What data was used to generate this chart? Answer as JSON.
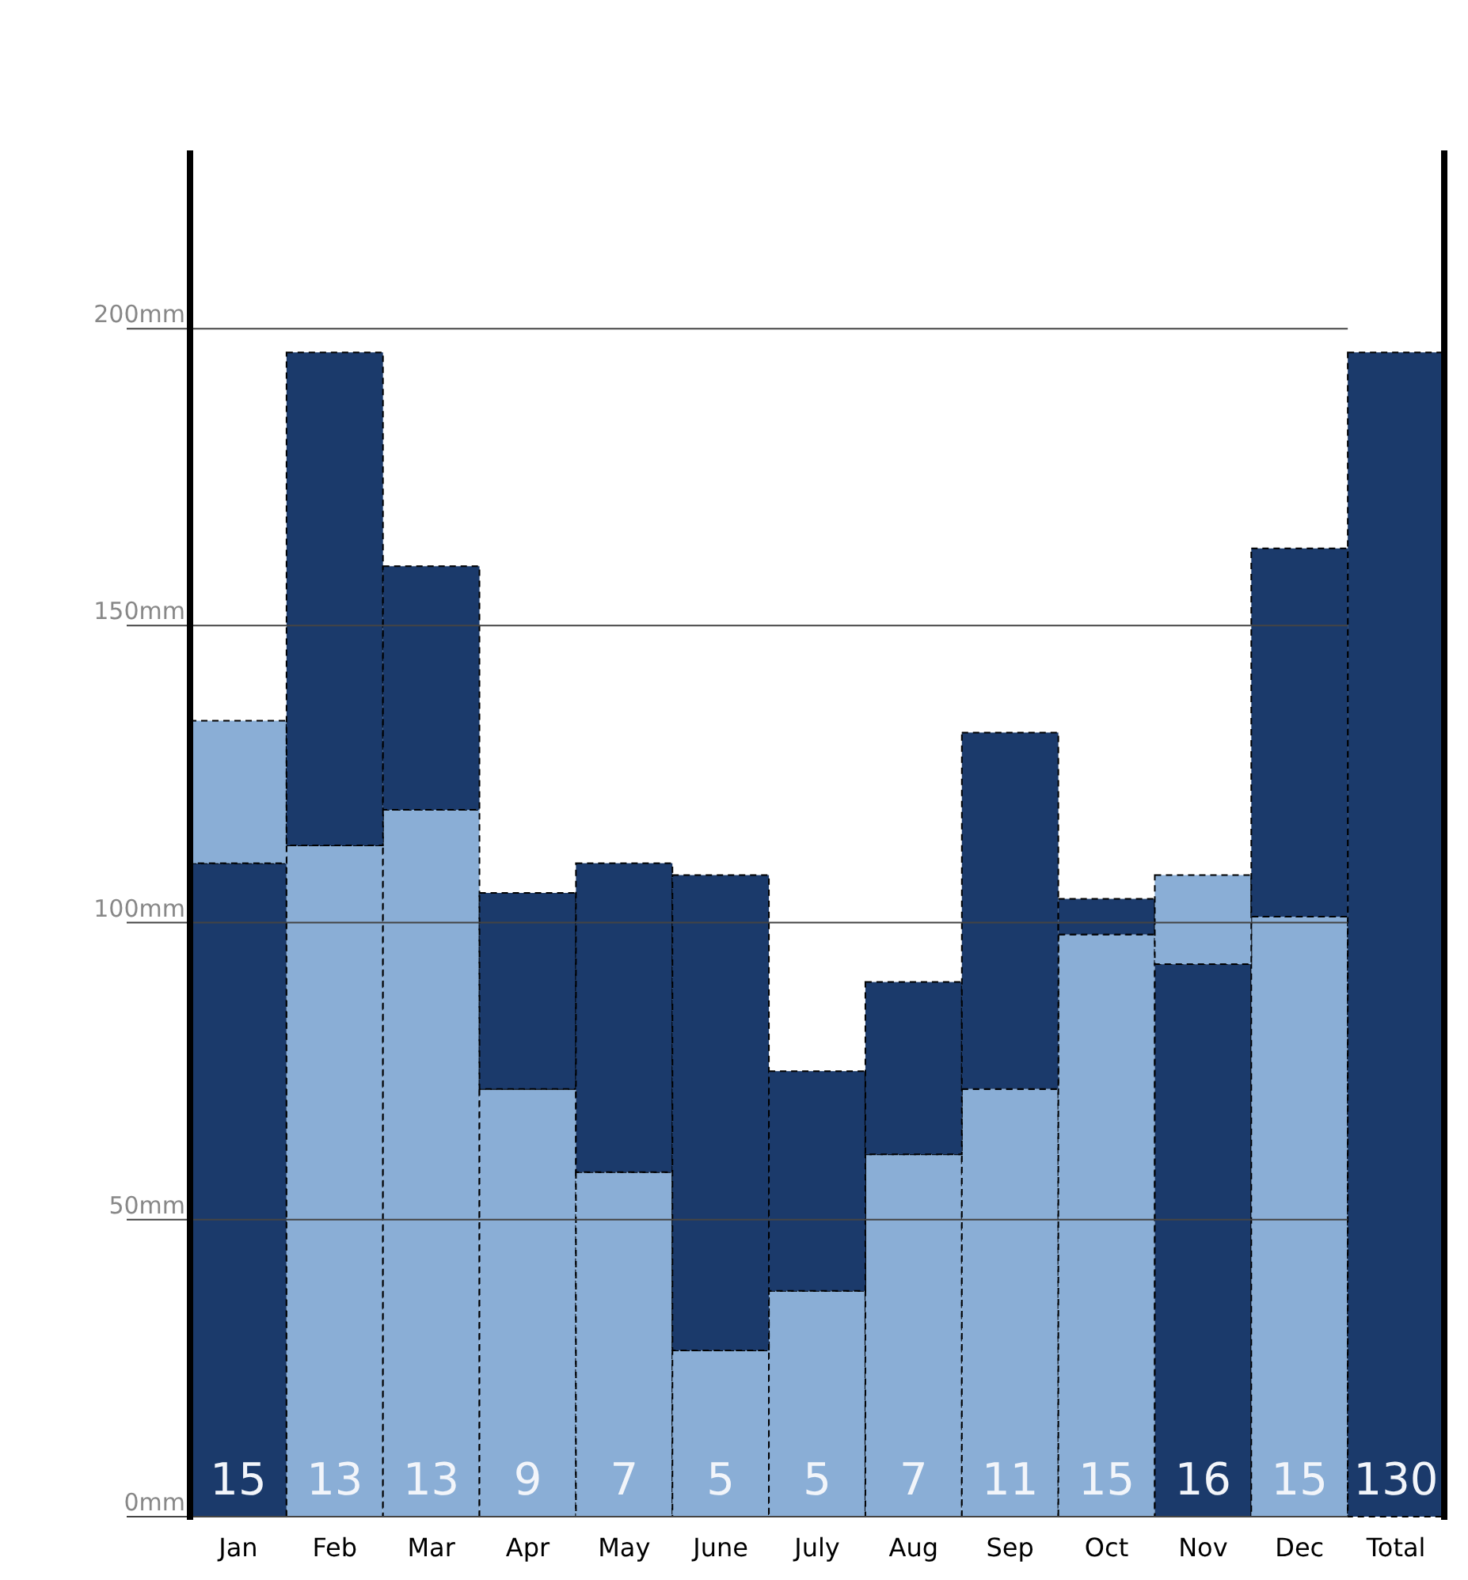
{
  "chart_data": {
    "type": "bar",
    "stacked": true,
    "categories": [
      "Jan",
      "Feb",
      "Mar",
      "Apr",
      "May",
      "June",
      "July",
      "Aug",
      "Sep",
      "Oct",
      "Nov",
      "Dec",
      "Total"
    ],
    "series": [
      {
        "colors": [
          "#1b3a6b",
          "#8aaed6",
          "#8aaed6",
          "#8aaed6",
          "#8aaed6",
          "#8aaed6",
          "#8aaed6",
          "#8aaed6",
          "#8aaed6",
          "#8aaed6",
          "#1b3a6b",
          "#8aaed6",
          "#1b3a6b"
        ],
        "values": [
          110,
          113,
          119,
          72,
          58,
          28,
          38,
          61,
          72,
          98,
          93,
          101,
          196
        ]
      },
      {
        "colors": [
          "#8aaed6",
          "#1b3a6b",
          "#1b3a6b",
          "#1b3a6b",
          "#1b3a6b",
          "#1b3a6b",
          "#1b3a6b",
          "#1b3a6b",
          "#1b3a6b",
          "#1b3a6b",
          "#8aaed6",
          "#1b3a6b",
          null
        ],
        "values": [
          24,
          83,
          41,
          33,
          52,
          80,
          37,
          29,
          60,
          6,
          15,
          62,
          null
        ]
      }
    ],
    "ylim": [
      0,
      230
    ],
    "yticks": [
      {
        "value": 0,
        "label": "0mm"
      },
      {
        "value": 50,
        "label": "50mm"
      },
      {
        "value": 100,
        "label": "100mm"
      },
      {
        "value": 150,
        "label": "150mm"
      },
      {
        "value": 200,
        "label": "200mm"
      }
    ],
    "grid": "y",
    "line_style": "dashed",
    "annotations": [
      "15",
      "13",
      "13",
      "9",
      "7",
      "5",
      "5",
      "7",
      "11",
      "15",
      "16",
      "15",
      "130"
    ]
  }
}
